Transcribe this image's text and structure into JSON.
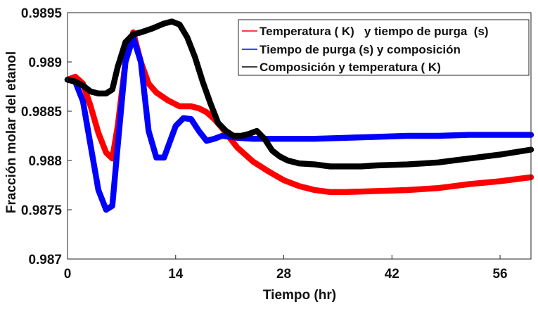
{
  "chart_data": {
    "type": "line",
    "title": "",
    "xlabel": "Tiempo (hr)",
    "ylabel": "Fracción molar del etanol",
    "xlim": [
      0,
      60
    ],
    "ylim": [
      0.987,
      0.9895
    ],
    "xticks": [
      0,
      14,
      28,
      42,
      56
    ],
    "xtick_labels": [
      "0",
      "14",
      "28",
      "42",
      "56"
    ],
    "yticks": [
      0.987,
      0.9875,
      0.988,
      0.9885,
      0.989,
      0.9895
    ],
    "ytick_labels": [
      "0.987",
      "0.9875",
      "0.988",
      "0.9885",
      "0.989",
      "0.9895"
    ],
    "grid": false,
    "legend_position": "top-right",
    "band_halfwidth": 3e-05,
    "series": [
      {
        "name": "Temperatura ( K)   y tiempo de purga  (s)",
        "color": "#ff0000",
        "x": [
          0,
          1,
          2,
          3,
          4,
          5,
          5.8,
          6.5,
          7.5,
          8.5,
          9.5,
          10.5,
          11.5,
          13,
          14.5,
          16,
          17,
          18,
          19,
          20,
          21,
          22,
          24,
          26,
          28,
          30,
          32,
          34,
          36,
          40,
          44,
          48,
          52,
          56,
          60
        ],
        "y": [
          0.98882,
          0.98885,
          0.98878,
          0.98855,
          0.98828,
          0.98808,
          0.98802,
          0.98835,
          0.989,
          0.9893,
          0.989,
          0.98878,
          0.98869,
          0.98861,
          0.98855,
          0.98855,
          0.98853,
          0.98849,
          0.98842,
          0.98833,
          0.98823,
          0.98813,
          0.98799,
          0.98789,
          0.9878,
          0.98774,
          0.9877,
          0.98768,
          0.98768,
          0.98769,
          0.9877,
          0.98772,
          0.98776,
          0.98779,
          0.98783
        ]
      },
      {
        "name": "Tiempo de purga (s) y composición",
        "color": "#0000ff",
        "x": [
          0,
          1,
          2,
          3,
          4,
          5,
          5.8,
          6.5,
          7.5,
          8.5,
          9.5,
          10.5,
          11.5,
          12.5,
          13.2,
          14,
          15,
          16,
          17,
          18,
          19,
          20,
          22,
          24,
          26,
          28,
          32,
          36,
          40,
          44,
          48,
          52,
          56,
          60
        ],
        "y": [
          0.98882,
          0.9888,
          0.9886,
          0.98815,
          0.9877,
          0.9875,
          0.98754,
          0.98815,
          0.989,
          0.98925,
          0.989,
          0.9883,
          0.98803,
          0.98803,
          0.98818,
          0.98835,
          0.98843,
          0.98842,
          0.9883,
          0.9882,
          0.98822,
          0.98825,
          0.98823,
          0.98822,
          0.98822,
          0.98822,
          0.98822,
          0.98823,
          0.98824,
          0.98825,
          0.98825,
          0.98826,
          0.98826,
          0.98826
        ]
      },
      {
        "name": "Composición y temperatura ( K)",
        "color": "#000000",
        "x": [
          0,
          1,
          2,
          3,
          4,
          5,
          5.8,
          6.5,
          7.5,
          8.5,
          9.5,
          11,
          12.5,
          13.5,
          14.5,
          15.5,
          16.5,
          17.5,
          18.5,
          19.5,
          20.5,
          21.5,
          22.5,
          23.5,
          24.5,
          25.5,
          26.5,
          27.5,
          28.5,
          30,
          32,
          34,
          36,
          38,
          40,
          44,
          48,
          52,
          56,
          60
        ],
        "y": [
          0.98882,
          0.9888,
          0.98876,
          0.9887,
          0.98868,
          0.98868,
          0.98872,
          0.98895,
          0.9892,
          0.98928,
          0.9893,
          0.98934,
          0.98939,
          0.98941,
          0.98938,
          0.98925,
          0.98905,
          0.9888,
          0.98858,
          0.98838,
          0.9883,
          0.98825,
          0.98825,
          0.98827,
          0.9883,
          0.98822,
          0.9881,
          0.98804,
          0.988,
          0.98797,
          0.98796,
          0.98794,
          0.98794,
          0.98794,
          0.98795,
          0.98796,
          0.98798,
          0.98802,
          0.98806,
          0.98811
        ]
      }
    ]
  }
}
